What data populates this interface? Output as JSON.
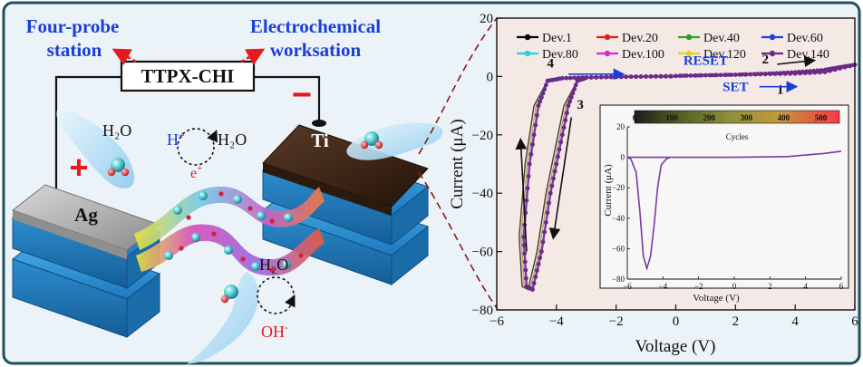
{
  "colors": {
    "frame_bg": "#ecf3f8",
    "frame_border": "#1f4f5e",
    "blue_label": "#1a3fd6",
    "red_label": "#e41a1c",
    "electrode_blue": "#2d96d6",
    "electrode_dark": "#3b2a1c",
    "electrode_silver": "#a8a8a8",
    "plot_bg": "#f5e9e6",
    "inset_bg": "#f7f7f7",
    "curve_main": "#7b3aa0",
    "curve_alt": "#9b8d2a"
  },
  "diagram": {
    "label_fourprobe": [
      "Four-probe",
      "station"
    ],
    "label_electrochem": [
      "Electrochemical",
      "worksation"
    ],
    "box_label": "TTPX-CHI",
    "minus_sign": "−",
    "plus_sign": "+",
    "ag_label": "Ag",
    "ti_label": "Ti",
    "h2o_a": "H₂O",
    "h2o_b": "H₂O",
    "h2o_c": "H₂O",
    "h_plus": "H",
    "h_plus_sup": "+",
    "e_plus": "e",
    "e_plus_sup": "+",
    "oh_minus": "OH",
    "oh_minus_sup": "-"
  },
  "chart_data": [
    {
      "type": "line",
      "xlabel": "Voltage (V)",
      "ylabel": "Current (μA)",
      "xlim": [
        -6,
        6
      ],
      "ylim": [
        -80,
        20
      ],
      "xticks": [
        -6,
        -4,
        -2,
        0,
        2,
        4,
        6
      ],
      "yticks": [
        20,
        0,
        -20,
        -40,
        -60,
        -80
      ],
      "legend_placement": "top",
      "series": [
        {
          "name": "Dev.1",
          "color": "#000000",
          "marker": "square"
        },
        {
          "name": "Dev.20",
          "color": "#e41a1c",
          "marker": "circle"
        },
        {
          "name": "Dev.40",
          "color": "#2ca02c",
          "marker": "triangle-up"
        },
        {
          "name": "Dev.60",
          "color": "#1f3fd6",
          "marker": "triangle-down"
        },
        {
          "name": "Dev.80",
          "color": "#1fd3e0",
          "marker": "diamond"
        },
        {
          "name": "Dev.100",
          "color": "#d62ad6",
          "marker": "triangle-left"
        },
        {
          "name": "Dev.120",
          "color": "#e0d11f",
          "marker": "triangle-right"
        },
        {
          "name": "Dev.140",
          "color": "#6a2a8a",
          "marker": "hexagon"
        }
      ],
      "curve": {
        "forward": [
          [
            0,
            0.2
          ],
          [
            1,
            0.4
          ],
          [
            2,
            0.6
          ],
          [
            3,
            1.0
          ],
          [
            4,
            1.5
          ],
          [
            5,
            2.3
          ],
          [
            5.5,
            3.2
          ],
          [
            6,
            4.0
          ]
        ],
        "return": [
          [
            6,
            4.0
          ],
          [
            5,
            1.5
          ],
          [
            4,
            1.0
          ],
          [
            3,
            0.8
          ],
          [
            2,
            0.6
          ],
          [
            1,
            0.4
          ],
          [
            0,
            0.2
          ],
          [
            -1,
            0.0
          ],
          [
            -2,
            -0.2
          ],
          [
            -3,
            -0.3
          ],
          [
            -3.8,
            -0.6
          ],
          [
            -4.3,
            -1.5
          ],
          [
            -4.6,
            -10
          ],
          [
            -4.9,
            -30
          ],
          [
            -5.1,
            -55
          ],
          [
            -5.0,
            -72
          ],
          [
            -4.8,
            -73
          ],
          [
            -4.5,
            -60
          ],
          [
            -4.2,
            -40
          ],
          [
            -3.9,
            -25
          ],
          [
            -3.6,
            -10
          ],
          [
            -3.3,
            -1.5
          ],
          [
            -3,
            -0.4
          ],
          [
            -2,
            -0.1
          ],
          [
            -1,
            0
          ],
          [
            0,
            0
          ]
        ]
      },
      "annotations": [
        {
          "text": "1",
          "x": 3.5,
          "y": -6
        },
        {
          "text": "SET",
          "x": 2.0,
          "y": -5
        },
        {
          "text": "2",
          "x": 3.0,
          "y": 4.5
        },
        {
          "text": "RESET",
          "x": 1.0,
          "y": 4.0
        },
        {
          "text": "3",
          "x": -3.2,
          "y": -11
        },
        {
          "text": "4",
          "x": -4.2,
          "y": 3.0
        }
      ]
    },
    {
      "type": "line",
      "title": "Cycles",
      "xlabel": "Voltage (V)",
      "ylabel": "Current (μA)",
      "xlim": [
        -6,
        6
      ],
      "ylim": [
        -80,
        20
      ],
      "xticks": [
        -6,
        -4,
        -2,
        0,
        2,
        4,
        6
      ],
      "yticks": [
        20,
        0,
        -20,
        -40,
        -60,
        -80
      ],
      "colorbar_ticks": [
        0,
        100,
        200,
        300,
        400,
        500
      ],
      "curve": {
        "points": [
          [
            -6,
            0
          ],
          [
            -4,
            0
          ],
          [
            -3.6,
            0
          ],
          [
            -3.8,
            -1
          ],
          [
            -4.1,
            -5
          ],
          [
            -4.3,
            -20
          ],
          [
            -4.5,
            -45
          ],
          [
            -4.7,
            -65
          ],
          [
            -4.9,
            -73
          ],
          [
            -5.1,
            -65
          ],
          [
            -5.3,
            -35
          ],
          [
            -5.5,
            -10
          ],
          [
            -5.8,
            -1
          ],
          [
            -6,
            0
          ],
          [
            0,
            0
          ],
          [
            3,
            0.5
          ],
          [
            5,
            2.5
          ],
          [
            6,
            4
          ]
        ]
      }
    }
  ]
}
